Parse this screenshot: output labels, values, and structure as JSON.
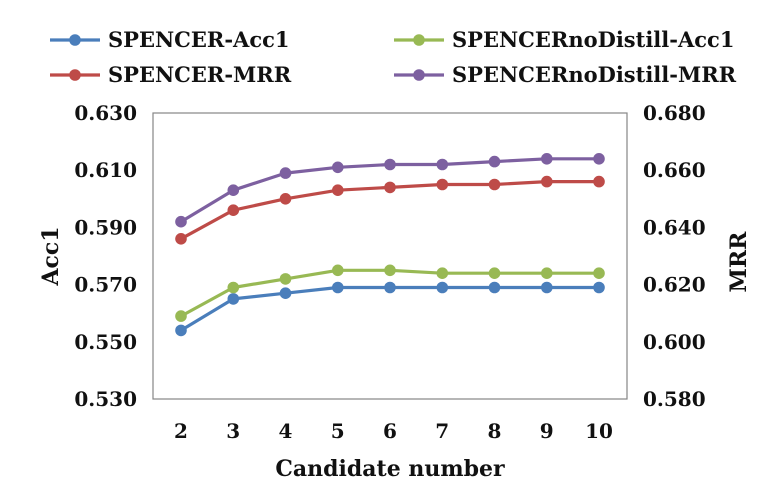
{
  "chart_data": {
    "type": "line",
    "title": "",
    "xlabel": "Candidate number",
    "ylabel": "Acc1",
    "y2label": "MRR",
    "categories": [
      "2",
      "3",
      "4",
      "5",
      "6",
      "7",
      "8",
      "9",
      "10"
    ],
    "ylim": [
      0.53,
      0.63
    ],
    "y2lim": [
      0.58,
      0.68
    ],
    "yticks": [
      "0.530",
      "0.550",
      "0.570",
      "0.590",
      "0.610",
      "0.630"
    ],
    "y2ticks": [
      "0.580",
      "0.600",
      "0.620",
      "0.640",
      "0.660",
      "0.680"
    ],
    "grid": false,
    "legend_position": "top",
    "series": [
      {
        "name": "SPENCER-Acc1",
        "axis": "left",
        "color": "#4a7ebb",
        "values": [
          0.554,
          0.565,
          0.567,
          0.569,
          0.569,
          0.569,
          0.569,
          0.569,
          0.569
        ]
      },
      {
        "name": "SPENCER-MRR",
        "axis": "right",
        "color": "#be4b48",
        "values": [
          0.636,
          0.646,
          0.65,
          0.653,
          0.654,
          0.655,
          0.655,
          0.656,
          0.656
        ]
      },
      {
        "name": "SPENCERnoDistill-Acc1",
        "axis": "left",
        "color": "#98b954",
        "values": [
          0.559,
          0.569,
          0.572,
          0.575,
          0.575,
          0.574,
          0.574,
          0.574,
          0.574
        ]
      },
      {
        "name": "SPENCERnoDistill-MRR",
        "axis": "right",
        "color": "#7d60a0",
        "values": [
          0.642,
          0.653,
          0.659,
          0.661,
          0.662,
          0.662,
          0.663,
          0.664,
          0.664
        ]
      }
    ]
  }
}
